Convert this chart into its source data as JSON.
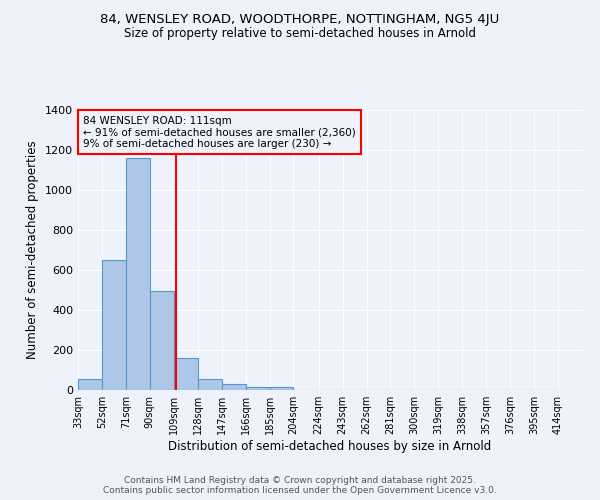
{
  "title1": "84, WENSLEY ROAD, WOODTHORPE, NOTTINGHAM, NG5 4JU",
  "title2": "Size of property relative to semi-detached houses in Arnold",
  "xlabel": "Distribution of semi-detached houses by size in Arnold",
  "ylabel": "Number of semi-detached properties",
  "bar_left_edges": [
    33,
    52,
    71,
    90,
    109,
    128,
    147,
    166,
    185,
    204,
    224,
    243,
    262,
    281,
    300,
    319,
    338,
    357,
    376,
    395
  ],
  "bar_heights": [
    57,
    648,
    1160,
    497,
    160,
    57,
    28,
    15,
    13,
    0,
    0,
    0,
    0,
    0,
    0,
    0,
    0,
    0,
    0,
    0
  ],
  "bin_width": 19,
  "bar_color": "#aec6e8",
  "bar_edge_color": "#5599cc",
  "property_line_x": 111,
  "property_line_color": "red",
  "annotation_text": "84 WENSLEY ROAD: 111sqm\n← 91% of semi-detached houses are smaller (2,360)\n9% of semi-detached houses are larger (230) →",
  "annotation_box_color": "red",
  "ylim": [
    0,
    1400
  ],
  "xlim_min": 33,
  "xlim_max": 433,
  "tick_positions": [
    33,
    52,
    71,
    90,
    109,
    128,
    147,
    166,
    185,
    204,
    224,
    243,
    262,
    281,
    300,
    319,
    338,
    357,
    376,
    395,
    414
  ],
  "tick_labels": [
    "33sqm",
    "52sqm",
    "71sqm",
    "90sqm",
    "109sqm",
    "128sqm",
    "147sqm",
    "166sqm",
    "185sqm",
    "204sqm",
    "224sqm",
    "243sqm",
    "262sqm",
    "281sqm",
    "300sqm",
    "319sqm",
    "338sqm",
    "357sqm",
    "376sqm",
    "395sqm",
    "414sqm"
  ],
  "footer_text": "Contains HM Land Registry data © Crown copyright and database right 2025.\nContains public sector information licensed under the Open Government Licence v3.0.",
  "background_color": "#eef2fa",
  "grid_color": "#ffffff"
}
